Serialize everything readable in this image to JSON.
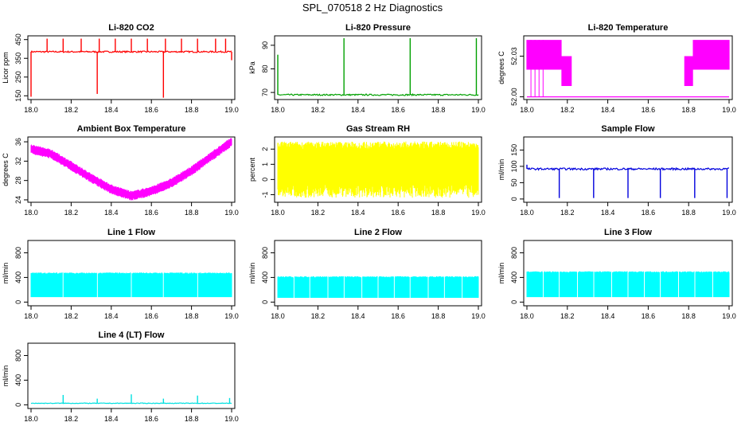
{
  "page_title": "SPL_070518  2 Hz Diagnostics",
  "chart_data": [
    {
      "id": "co2",
      "type": "line",
      "title": "Li-820 CO2",
      "ylabel": "Licor ppm",
      "xlim": [
        18.0,
        19.0
      ],
      "ylim": [
        130,
        470
      ],
      "xticks": [
        18.0,
        18.2,
        18.4,
        18.6,
        18.8,
        19.0
      ],
      "yticks": [
        150,
        250,
        350,
        450
      ],
      "ytick_labels": [
        "150",
        "250",
        "350",
        "450"
      ],
      "color": "#ff0000",
      "series": [
        {
          "baseline": 385,
          "noise": 4,
          "spikes": [
            {
              "x": 18.0,
              "y": 145
            },
            {
              "x": 18.08,
              "y": 455
            },
            {
              "x": 18.16,
              "y": 455
            },
            {
              "x": 18.25,
              "y": 455
            },
            {
              "x": 18.33,
              "y": 160
            },
            {
              "x": 18.34,
              "y": 455
            },
            {
              "x": 18.42,
              "y": 455
            },
            {
              "x": 18.5,
              "y": 455
            },
            {
              "x": 18.58,
              "y": 455
            },
            {
              "x": 18.66,
              "y": 140
            },
            {
              "x": 18.67,
              "y": 455
            },
            {
              "x": 18.75,
              "y": 455
            },
            {
              "x": 18.83,
              "y": 455
            },
            {
              "x": 18.92,
              "y": 455
            },
            {
              "x": 18.97,
              "y": 455
            },
            {
              "x": 19.0,
              "y": 340
            }
          ]
        }
      ]
    },
    {
      "id": "pressure",
      "type": "line",
      "title": "Li-820 Pressure",
      "ylabel": "kPa",
      "xlim": [
        18.0,
        19.0
      ],
      "ylim": [
        67,
        94
      ],
      "xticks": [
        18.0,
        18.2,
        18.4,
        18.6,
        18.8,
        19.0
      ],
      "yticks": [
        70,
        80,
        90
      ],
      "ytick_labels": [
        "70",
        "80",
        "90"
      ],
      "color": "#00a000",
      "series": [
        {
          "baseline": 69,
          "noise": 0.3,
          "spikes": [
            {
              "x": 18.0,
              "y": 86
            },
            {
              "x": 18.33,
              "y": 93
            },
            {
              "x": 18.66,
              "y": 93
            },
            {
              "x": 18.99,
              "y": 93
            }
          ]
        }
      ]
    },
    {
      "id": "temperature",
      "type": "area",
      "title": "Li-820 Temperature",
      "ylabel": "degrees C",
      "xlim": [
        18.0,
        19.0
      ],
      "ylim": [
        51.998,
        52.045
      ],
      "xticks": [
        18.0,
        18.2,
        18.4,
        18.6,
        18.8,
        19.0
      ],
      "yticks": [
        52.0,
        52.03
      ],
      "ytick_labels": [
        "52.00",
        "52.03"
      ],
      "color": "#ff00ff",
      "series": [
        {
          "points": [
            {
              "x": 18.0,
              "y": 52.042
            },
            {
              "x": 18.17,
              "y": 52.042
            },
            {
              "x": 18.17,
              "y": 52.03
            },
            {
              "x": 18.22,
              "y": 52.03
            },
            {
              "x": 18.22,
              "y": 52.0
            },
            {
              "x": 18.78,
              "y": 52.0
            },
            {
              "x": 18.78,
              "y": 52.03
            },
            {
              "x": 18.82,
              "y": 52.03
            },
            {
              "x": 18.82,
              "y": 52.042
            },
            {
              "x": 19.0,
              "y": 52.042
            }
          ],
          "band": 0.022
        }
      ]
    },
    {
      "id": "box_temp",
      "type": "line",
      "title": "Ambient Box Temperature",
      "ylabel": "degrees C",
      "xlim": [
        18.0,
        19.0
      ],
      "ylim": [
        23.5,
        37
      ],
      "xticks": [
        18.0,
        18.2,
        18.4,
        18.6,
        18.8,
        19.0
      ],
      "yticks": [
        24,
        28,
        32,
        36
      ],
      "ytick_labels": [
        "24",
        "28",
        "32",
        "36"
      ],
      "color": "#ff00ff",
      "series": [
        {
          "points": [
            {
              "x": 18.0,
              "y": 34.5
            },
            {
              "x": 18.1,
              "y": 33.5
            },
            {
              "x": 18.2,
              "y": 31.0
            },
            {
              "x": 18.3,
              "y": 28.5
            },
            {
              "x": 18.4,
              "y": 26.2
            },
            {
              "x": 18.5,
              "y": 24.8
            },
            {
              "x": 18.6,
              "y": 25.8
            },
            {
              "x": 18.7,
              "y": 27.5
            },
            {
              "x": 18.8,
              "y": 30.0
            },
            {
              "x": 18.9,
              "y": 33.0
            },
            {
              "x": 19.0,
              "y": 36.0
            }
          ],
          "band": 1.2
        }
      ]
    },
    {
      "id": "rh",
      "type": "line",
      "title": "Gas Stream RH",
      "ylabel": "percent",
      "xlim": [
        18.0,
        19.0
      ],
      "ylim": [
        -1.5,
        2.8
      ],
      "xticks": [
        18.0,
        18.2,
        18.4,
        18.6,
        18.8,
        19.0
      ],
      "yticks": [
        -1,
        0,
        1,
        2
      ],
      "ytick_labels": [
        "-1",
        "0",
        "1",
        "2"
      ],
      "color": "#ffff00",
      "series": [
        {
          "baseline": 1.0,
          "band_low": -1.2,
          "band_high": 2.5
        }
      ]
    },
    {
      "id": "sample_flow",
      "type": "line",
      "title": "Sample Flow",
      "ylabel": "ml/min",
      "xlim": [
        18.0,
        19.0
      ],
      "ylim": [
        -10,
        190
      ],
      "xticks": [
        18.0,
        18.2,
        18.4,
        18.6,
        18.8,
        19.0
      ],
      "yticks": [
        0,
        50,
        100,
        150
      ],
      "ytick_labels": [
        "0",
        "50",
        "100",
        "150"
      ],
      "color": "#0000dd",
      "series": [
        {
          "baseline": 92,
          "noise": 3,
          "spikes": [
            {
              "x": 18.0,
              "y": 105
            },
            {
              "x": 18.16,
              "y": 3
            },
            {
              "x": 18.33,
              "y": 3
            },
            {
              "x": 18.5,
              "y": 3
            },
            {
              "x": 18.66,
              "y": 3
            },
            {
              "x": 18.83,
              "y": 3
            },
            {
              "x": 18.99,
              "y": 3
            }
          ]
        }
      ]
    },
    {
      "id": "line1",
      "type": "area",
      "title": "Line 1 Flow",
      "ylabel": "ml/min",
      "xlim": [
        18.0,
        19.0
      ],
      "ylim": [
        -60,
        1000
      ],
      "xticks": [
        18.0,
        18.2,
        18.4,
        18.6,
        18.8,
        19.0
      ],
      "yticks": [
        0,
        400,
        800
      ],
      "ytick_labels": [
        "0",
        "400",
        "800"
      ],
      "color": "#00ffff",
      "series": [
        {
          "low": 80,
          "high": 480,
          "gaps": [
            18.16,
            18.33,
            18.5,
            18.66,
            18.83
          ]
        }
      ]
    },
    {
      "id": "line2",
      "type": "area",
      "title": "Line 2 Flow",
      "ylabel": "ml/min",
      "xlim": [
        18.0,
        19.0
      ],
      "ylim": [
        -60,
        1000
      ],
      "xticks": [
        18.0,
        18.2,
        18.4,
        18.6,
        18.8,
        19.0
      ],
      "yticks": [
        0,
        400,
        800
      ],
      "ytick_labels": [
        "0",
        "400",
        "800"
      ],
      "color": "#00ffff",
      "series": [
        {
          "low": 70,
          "high": 420,
          "gaps": [
            18.08,
            18.16,
            18.25,
            18.33,
            18.42,
            18.5,
            18.58,
            18.66,
            18.75,
            18.83,
            18.92
          ]
        }
      ]
    },
    {
      "id": "line3",
      "type": "area",
      "title": "Line 3 Flow",
      "ylabel": "ml/min",
      "xlim": [
        18.0,
        19.0
      ],
      "ylim": [
        -60,
        1000
      ],
      "xticks": [
        18.0,
        18.2,
        18.4,
        18.6,
        18.8,
        19.0
      ],
      "yticks": [
        0,
        400,
        800
      ],
      "ytick_labels": [
        "0",
        "400",
        "800"
      ],
      "color": "#00ffff",
      "series": [
        {
          "low": 80,
          "high": 500,
          "gaps": [
            18.08,
            18.16,
            18.25,
            18.33,
            18.42,
            18.5,
            18.58,
            18.66,
            18.75,
            18.83,
            18.92
          ]
        }
      ]
    },
    {
      "id": "line4",
      "type": "line",
      "title": "Line 4 (LT) Flow",
      "ylabel": "ml/min",
      "xlim": [
        18.0,
        19.0
      ],
      "ylim": [
        -60,
        1000
      ],
      "xticks": [
        18.0,
        18.2,
        18.4,
        18.6,
        18.8,
        19.0
      ],
      "yticks": [
        0,
        400,
        800
      ],
      "ytick_labels": [
        "0",
        "400",
        "800"
      ],
      "color": "#00e0e0",
      "series": [
        {
          "baseline": 25,
          "noise": 5,
          "spikes": [
            {
              "x": 18.16,
              "y": 160
            },
            {
              "x": 18.33,
              "y": 100
            },
            {
              "x": 18.5,
              "y": 170
            },
            {
              "x": 18.66,
              "y": 100
            },
            {
              "x": 18.83,
              "y": 150
            },
            {
              "x": 18.99,
              "y": 110
            }
          ]
        }
      ]
    }
  ]
}
